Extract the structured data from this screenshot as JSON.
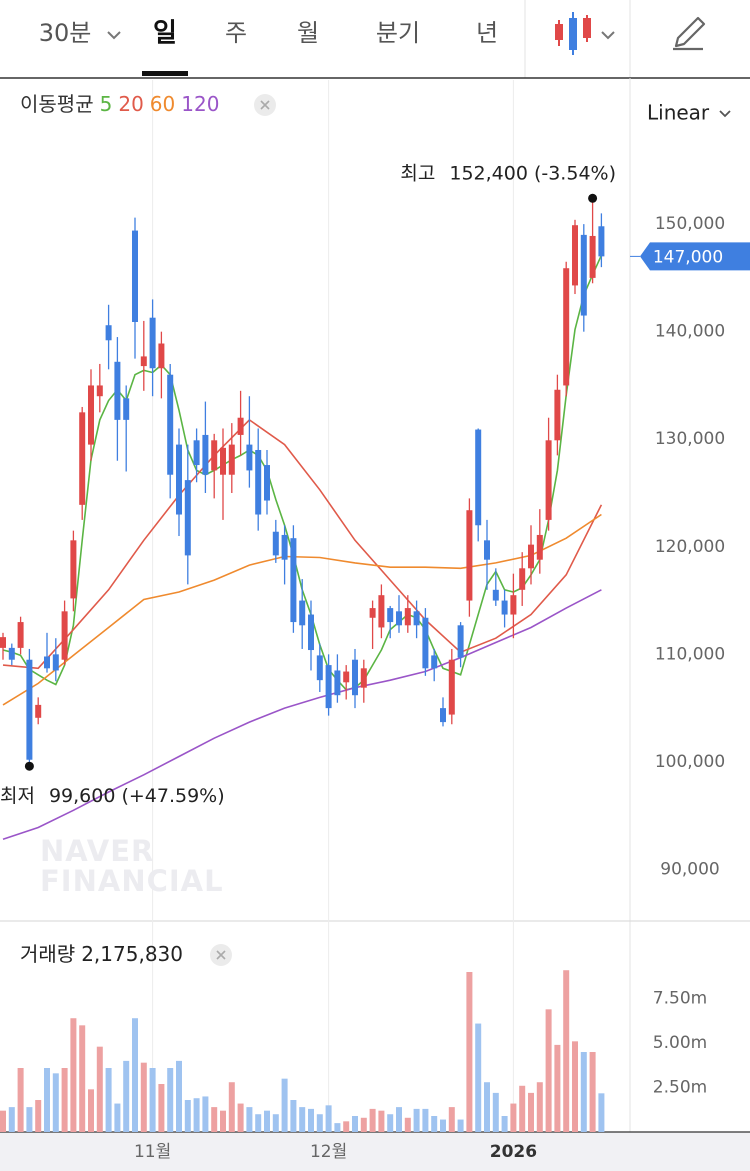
{
  "toolbar": {
    "tabs": [
      "30분",
      "일",
      "주",
      "월",
      "분기",
      "년"
    ],
    "active": 1,
    "scale": "Linear"
  },
  "chart_data": [
    {
      "type": "candlestick",
      "legend_title": "이동평균",
      "categories": [
        null,
        null,
        null,
        null,
        null,
        null,
        null,
        null,
        null,
        null,
        null,
        null,
        null,
        null,
        null,
        null,
        null,
        "11월",
        null,
        null,
        null,
        null,
        null,
        null,
        null,
        null,
        null,
        null,
        null,
        null,
        null,
        null,
        null,
        null,
        null,
        null,
        null,
        "12월",
        null,
        null,
        null,
        null,
        null,
        null,
        null,
        null,
        null,
        null,
        null,
        null,
        null,
        null,
        null,
        null,
        null,
        null,
        null,
        null,
        "2026",
        null,
        null,
        null,
        null,
        null,
        null,
        null,
        null,
        null,
        null
      ],
      "open": [
        110600,
        110600,
        110600,
        109500,
        104100,
        109800,
        110000,
        109500,
        115200,
        123900,
        129500,
        134000,
        140600,
        137200,
        133800,
        149400,
        136800,
        141300,
        136600,
        136000,
        129500,
        126200,
        129900,
        130400,
        127100,
        126700,
        126700,
        130400,
        129500,
        129000,
        127600,
        121400,
        121100,
        120800,
        115000,
        113700,
        109900,
        109000,
        108500,
        107400,
        109500,
        106900,
        113400,
        112500,
        114300,
        114000,
        112700,
        114000,
        113400,
        109900,
        105000,
        104400,
        112700,
        115000,
        130900,
        120600,
        116000,
        115000,
        113700,
        116000,
        118000,
        118800,
        122500,
        129900,
        135000,
        144300,
        149000,
        145000,
        149800
      ],
      "high": [
        112000,
        111000,
        113500,
        110500,
        106000,
        112000,
        111500,
        115000,
        121500,
        133000,
        136500,
        137000,
        142500,
        139500,
        135000,
        150600,
        141000,
        143000,
        140000,
        137000,
        131000,
        129500,
        131000,
        133500,
        130500,
        131000,
        131500,
        134500,
        134000,
        131000,
        129000,
        122500,
        122000,
        122000,
        117000,
        115000,
        111000,
        110000,
        110000,
        109000,
        110500,
        109500,
        115000,
        116500,
        114500,
        115500,
        115500,
        115000,
        114300,
        110500,
        106000,
        110500,
        113000,
        124500,
        131000,
        122500,
        118000,
        116000,
        117500,
        119500,
        122000,
        123500,
        132000,
        136000,
        146500,
        150400,
        150000,
        152400,
        151000
      ],
      "low": [
        109500,
        109000,
        110000,
        99600,
        103500,
        108300,
        107500,
        109000,
        114000,
        122500,
        128000,
        132500,
        136500,
        128000,
        127000,
        137500,
        134500,
        134000,
        133800,
        124500,
        121000,
        116500,
        126000,
        125000,
        124500,
        122500,
        125000,
        128500,
        125500,
        121500,
        123000,
        118500,
        116500,
        112000,
        110500,
        108500,
        106500,
        104300,
        105500,
        105800,
        105000,
        105500,
        110500,
        111500,
        111500,
        112000,
        112000,
        111500,
        108000,
        107500,
        103300,
        103500,
        108800,
        113500,
        120500,
        116000,
        114500,
        112500,
        111500,
        114500,
        116500,
        117500,
        121500,
        128500,
        134000,
        143500,
        140000,
        144500,
        146000
      ],
      "close": [
        111600,
        109500,
        113000,
        100200,
        105300,
        108700,
        108500,
        114000,
        120600,
        132500,
        135000,
        135000,
        139200,
        131800,
        131800,
        140900,
        137700,
        136600,
        138900,
        126700,
        123000,
        119200,
        127600,
        126700,
        129900,
        129200,
        129500,
        132000,
        127100,
        123000,
        124300,
        119200,
        118800,
        113000,
        112700,
        110400,
        107600,
        105000,
        106200,
        108400,
        106200,
        108700,
        114300,
        115500,
        113000,
        112700,
        114300,
        112700,
        108700,
        108700,
        103700,
        109500,
        109700,
        123400,
        122000,
        118800,
        115000,
        113700,
        115500,
        118000,
        120200,
        121100,
        129900,
        134600,
        145900,
        149900,
        141500,
        148900,
        147000
      ],
      "up_color": "#e04848",
      "down_color": "#3f7fe0",
      "series": [
        {
          "name": "5",
          "color": "#5bb544",
          "x": [
            0,
            1,
            2,
            3,
            4,
            5,
            6,
            7,
            8,
            9,
            10,
            11,
            12,
            13,
            14,
            15,
            16,
            17,
            18,
            19,
            20,
            21,
            22,
            23,
            24,
            25,
            26,
            27,
            28,
            29,
            30,
            31,
            32,
            33,
            34,
            35,
            36,
            37,
            38,
            39,
            40,
            41,
            42,
            43,
            44,
            45,
            46,
            47,
            48,
            49,
            50,
            51,
            52,
            53,
            54,
            55,
            56,
            57,
            58,
            59,
            60,
            61,
            62,
            63,
            64,
            65,
            66,
            67,
            68
          ],
          "values": [
            110400,
            110200,
            109900,
            108600,
            108100,
            107600,
            107200,
            109000,
            112700,
            120600,
            128100,
            131800,
            133600,
            134600,
            133600,
            136000,
            136400,
            136200,
            136900,
            136000,
            132700,
            129000,
            127100,
            126700,
            127100,
            127600,
            128100,
            128500,
            129000,
            128500,
            127100,
            124400,
            122000,
            119200,
            116000,
            113700,
            110900,
            108600,
            107600,
            106700,
            106900,
            107600,
            109000,
            110400,
            112300,
            113000,
            113700,
            113400,
            112300,
            110400,
            108700,
            108400,
            108100,
            110900,
            113700,
            116500,
            117700,
            116000,
            115800,
            116200,
            117400,
            118800,
            122500,
            127100,
            134100,
            140200,
            143400,
            145300,
            147100
          ]
        },
        {
          "name": "20",
          "color": "#e05a4a",
          "x": [
            0,
            4,
            8,
            12,
            16,
            20,
            24,
            28,
            32,
            36,
            40,
            44,
            48,
            52,
            56,
            60,
            64,
            68
          ],
          "values": [
            109000,
            108700,
            112300,
            116000,
            120600,
            124800,
            128500,
            131800,
            129500,
            125300,
            120600,
            116900,
            113200,
            110200,
            111500,
            113700,
            117400,
            123900
          ]
        },
        {
          "name": "60",
          "color": "#ef8a2e",
          "x": [
            0,
            4,
            8,
            12,
            16,
            20,
            24,
            28,
            32,
            36,
            40,
            44,
            48,
            52,
            56,
            60,
            64,
            68
          ],
          "values": [
            105300,
            107300,
            109900,
            112500,
            115100,
            115800,
            116900,
            118300,
            119100,
            119000,
            118500,
            118100,
            118100,
            118000,
            118500,
            119200,
            120800,
            123000
          ]
        },
        {
          "name": "120",
          "color": "#9a55c8",
          "x": [
            0,
            4,
            8,
            12,
            16,
            20,
            24,
            28,
            32,
            36,
            40,
            44,
            48,
            52,
            56,
            60,
            64,
            68
          ],
          "values": [
            92800,
            93900,
            95500,
            97200,
            98800,
            100500,
            102200,
            103700,
            105000,
            106000,
            106900,
            107600,
            108400,
            109700,
            111100,
            112500,
            114300,
            116000
          ]
        }
      ],
      "annotations": [
        {
          "label": "최고",
          "index": 67,
          "value": 152400,
          "value_label": "152,400",
          "change": "(-3.54%)"
        },
        {
          "label": "최저",
          "index": 3,
          "value": 99600,
          "value_label": "99,600",
          "change": "(+47.59%)"
        }
      ],
      "last_price": {
        "value": 147000,
        "label": "147,000"
      },
      "ylim": [
        85300,
        163400
      ],
      "yticks": [
        {
          "value": 90000,
          "label": "90,000"
        },
        {
          "value": 100000,
          "label": "100,000"
        },
        {
          "value": 110000,
          "label": "110,000"
        },
        {
          "value": 120000,
          "label": "120,000"
        },
        {
          "value": 130000,
          "label": "130,000"
        },
        {
          "value": 140000,
          "label": "140,000"
        },
        {
          "value": 150000,
          "label": "150,000"
        }
      ],
      "watermark": [
        "NAVER",
        "FINANCIAL"
      ]
    },
    {
      "type": "bar",
      "title": "거래량",
      "current": {
        "value": 2175830,
        "label": "2,175,830"
      },
      "up_color": "#eda1a1",
      "down_color": "#9fc3f0",
      "values": [
        1200000,
        1400000,
        3600000,
        1400000,
        1800000,
        3600000,
        3300000,
        3600000,
        6400000,
        6000000,
        2400000,
        4800000,
        3600000,
        1600000,
        4000000,
        6400000,
        3900000,
        3600000,
        2700000,
        3600000,
        4000000,
        1800000,
        1900000,
        2000000,
        1400000,
        1200000,
        2800000,
        1600000,
        1400000,
        1000000,
        1200000,
        1000000,
        3000000,
        1800000,
        1400000,
        1300000,
        1000000,
        1500000,
        500000,
        600000,
        900000,
        800000,
        1300000,
        1200000,
        1000000,
        1400000,
        800000,
        1300000,
        1300000,
        900000,
        700000,
        1400000,
        700000,
        9000000,
        6100000,
        2800000,
        2200000,
        900000,
        1600000,
        2600000,
        2200000,
        2800000,
        6900000,
        4900000,
        9100000,
        5100000,
        4500000,
        4500000,
        2175830
      ],
      "ylim": [
        0,
        10800000
      ],
      "yticks": [
        {
          "value": 2500000,
          "label": "2.50m"
        },
        {
          "value": 5000000,
          "label": "5.00m"
        },
        {
          "value": 7500000,
          "label": "7.50m"
        }
      ]
    }
  ]
}
